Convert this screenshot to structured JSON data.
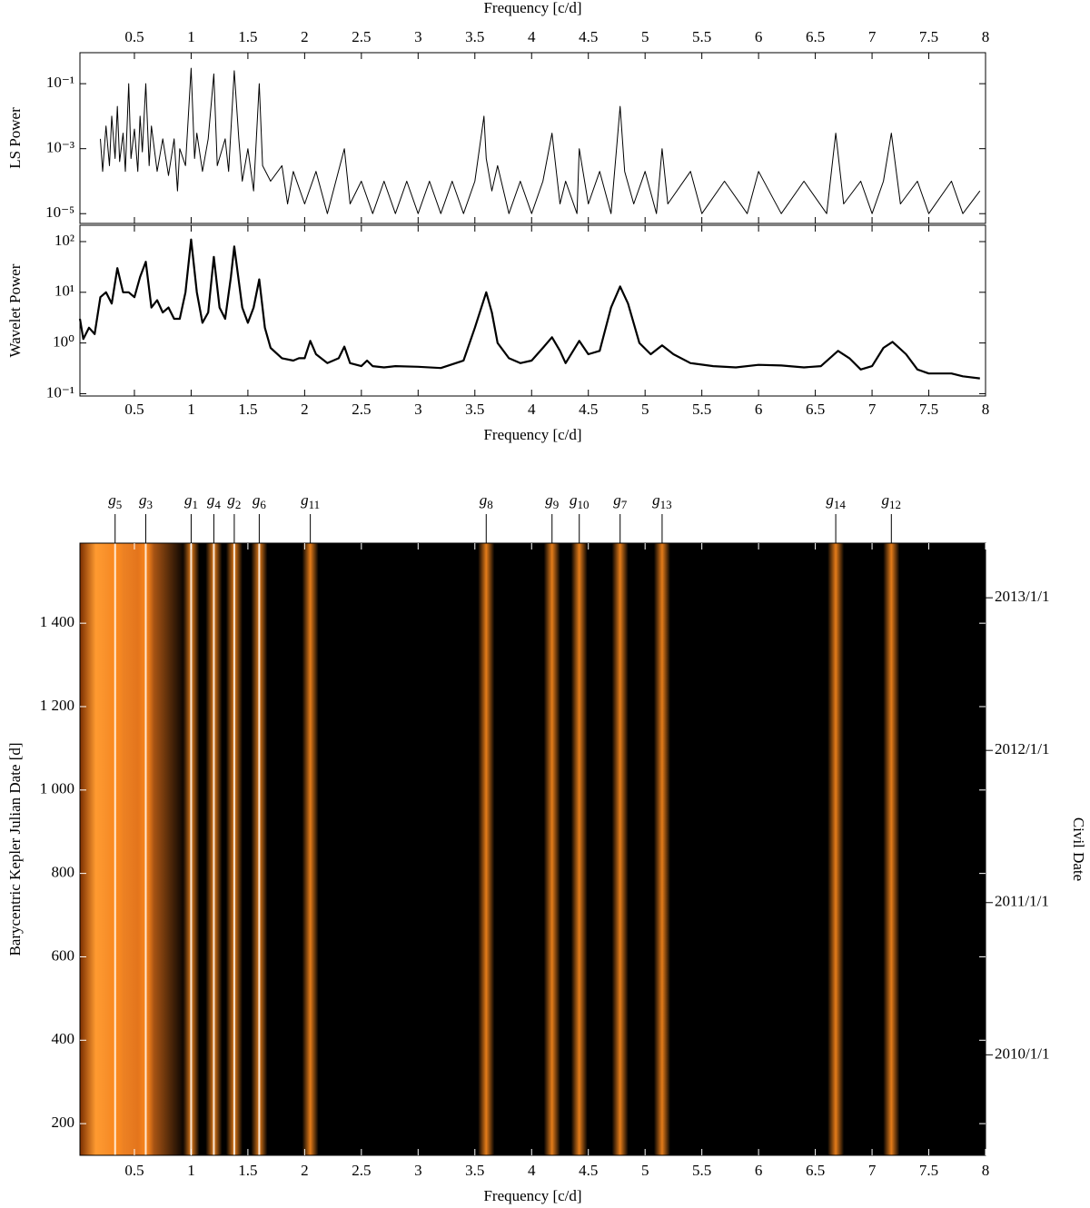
{
  "chart_data": [
    {
      "type": "line",
      "xaxis": "top",
      "log_y": true,
      "xlabel": "Frequency [c/d]",
      "ylabel": "LS Power",
      "xlim": [
        0.02,
        8
      ],
      "ylim": [
        5e-06,
        0.9
      ],
      "xticks": [
        0.5,
        1,
        1.5,
        2,
        2.5,
        3,
        3.5,
        4,
        4.5,
        5,
        5.5,
        6,
        6.5,
        7,
        7.5,
        8
      ],
      "yticks": [
        {
          "value": 0.1,
          "label": "10⁻¹"
        },
        {
          "value": 0.001,
          "label": "10⁻³"
        },
        {
          "value": 1e-05,
          "label": "10⁻⁵"
        }
      ],
      "series": [
        {
          "color": "#000000",
          "x": [
            0.2,
            0.22,
            0.25,
            0.28,
            0.3,
            0.33,
            0.35,
            0.37,
            0.4,
            0.42,
            0.45,
            0.47,
            0.5,
            0.53,
            0.55,
            0.57,
            0.6,
            0.63,
            0.65,
            0.7,
            0.75,
            0.8,
            0.85,
            0.88,
            0.9,
            0.95,
            1.0,
            1.03,
            1.05,
            1.1,
            1.15,
            1.2,
            1.23,
            1.3,
            1.33,
            1.38,
            1.42,
            1.45,
            1.5,
            1.55,
            1.6,
            1.63,
            1.7,
            1.8,
            1.85,
            1.9,
            2.0,
            2.1,
            2.2,
            2.35,
            2.4,
            2.5,
            2.6,
            2.7,
            2.8,
            2.9,
            3.0,
            3.1,
            3.2,
            3.3,
            3.4,
            3.5,
            3.58,
            3.6,
            3.65,
            3.7,
            3.8,
            3.9,
            4.0,
            4.1,
            4.18,
            4.25,
            4.3,
            4.4,
            4.42,
            4.5,
            4.6,
            4.7,
            4.78,
            4.82,
            4.9,
            5.0,
            5.1,
            5.15,
            5.2,
            5.4,
            5.5,
            5.7,
            5.9,
            6.0,
            6.2,
            6.4,
            6.6,
            6.68,
            6.75,
            6.9,
            7.0,
            7.1,
            7.17,
            7.25,
            7.4,
            7.5,
            7.7,
            7.8,
            7.95
          ],
          "values": [
            0.002,
            0.0002,
            0.005,
            0.0003,
            0.01,
            0.0005,
            0.02,
            0.0004,
            0.003,
            0.0002,
            0.1,
            0.0005,
            0.004,
            0.0002,
            0.01,
            0.0008,
            0.1,
            0.0003,
            0.005,
            0.0002,
            0.002,
            0.00015,
            0.002,
            5e-05,
            0.001,
            0.0003,
            0.3,
            0.0005,
            0.003,
            0.0002,
            0.002,
            0.2,
            0.0003,
            0.002,
            0.0002,
            0.25,
            0.002,
            0.0001,
            0.001,
            5e-05,
            0.1,
            0.0003,
            0.0001,
            0.0003,
            2e-05,
            0.0002,
            2e-05,
            0.0002,
            1e-05,
            0.001,
            2e-05,
            0.0001,
            1e-05,
            0.0001,
            1e-05,
            0.0001,
            1e-05,
            0.0001,
            1e-05,
            0.0001,
            1e-05,
            0.0001,
            0.01,
            0.0005,
            5e-05,
            0.0003,
            1e-05,
            0.0001,
            1e-05,
            0.0001,
            0.003,
            2e-05,
            0.0001,
            1e-05,
            0.001,
            2e-05,
            0.0002,
            1e-05,
            0.02,
            0.0002,
            2e-05,
            0.0002,
            1e-05,
            0.001,
            2e-05,
            0.0002,
            1e-05,
            0.0001,
            1e-05,
            0.0002,
            1e-05,
            0.0001,
            1e-05,
            0.003,
            2e-05,
            0.0001,
            1e-05,
            0.0001,
            0.003,
            2e-05,
            0.0001,
            1e-05,
            0.0001,
            1e-05,
            5e-05
          ]
        }
      ]
    },
    {
      "type": "line",
      "xaxis": "bottom",
      "log_y": true,
      "xlabel": "Frequency [c/d]",
      "ylabel": "Wavelet Power",
      "xlim": [
        0.02,
        8
      ],
      "ylim": [
        0.09,
        210
      ],
      "xticks": [
        0.5,
        1,
        1.5,
        2,
        2.5,
        3,
        3.5,
        4,
        4.5,
        5,
        5.5,
        6,
        6.5,
        7,
        7.5,
        8
      ],
      "yticks": [
        {
          "value": 100,
          "label": "10²"
        },
        {
          "value": 10,
          "label": "10¹"
        },
        {
          "value": 1,
          "label": "10⁰"
        },
        {
          "value": 0.1,
          "label": "10⁻¹"
        }
      ],
      "series": [
        {
          "color": "#000000",
          "x": [
            0.02,
            0.05,
            0.1,
            0.15,
            0.2,
            0.25,
            0.3,
            0.35,
            0.4,
            0.45,
            0.5,
            0.55,
            0.6,
            0.65,
            0.7,
            0.75,
            0.8,
            0.85,
            0.9,
            0.95,
            1.0,
            1.05,
            1.1,
            1.15,
            1.2,
            1.25,
            1.3,
            1.35,
            1.38,
            1.45,
            1.5,
            1.55,
            1.6,
            1.65,
            1.7,
            1.8,
            1.9,
            1.95,
            2.0,
            2.05,
            2.1,
            2.2,
            2.3,
            2.35,
            2.4,
            2.5,
            2.55,
            2.6,
            2.7,
            2.8,
            3.0,
            3.2,
            3.4,
            3.5,
            3.6,
            3.65,
            3.7,
            3.8,
            3.9,
            4.0,
            4.1,
            4.18,
            4.25,
            4.3,
            4.42,
            4.5,
            4.6,
            4.7,
            4.78,
            4.85,
            4.95,
            5.05,
            5.15,
            5.25,
            5.4,
            5.6,
            5.8,
            6.0,
            6.2,
            6.4,
            6.55,
            6.7,
            6.8,
            6.9,
            7.0,
            7.1,
            7.18,
            7.3,
            7.4,
            7.5,
            7.7,
            7.8,
            7.95
          ],
          "values": [
            3,
            1.2,
            2,
            1.5,
            8,
            10,
            6,
            30,
            10,
            10,
            8,
            20,
            40,
            5,
            7,
            4,
            5,
            3,
            3,
            10,
            110,
            10,
            2.5,
            4,
            50,
            5,
            3,
            20,
            80,
            5,
            2.5,
            5,
            18,
            2,
            0.8,
            0.5,
            0.45,
            0.5,
            0.5,
            1.1,
            0.6,
            0.4,
            0.5,
            0.85,
            0.4,
            0.35,
            0.45,
            0.35,
            0.33,
            0.35,
            0.34,
            0.32,
            0.45,
            2,
            10,
            4,
            1,
            0.5,
            0.4,
            0.45,
            0.8,
            1.3,
            0.7,
            0.4,
            1.1,
            0.6,
            0.7,
            5,
            13,
            6,
            1,
            0.6,
            0.9,
            0.6,
            0.4,
            0.35,
            0.33,
            0.37,
            0.36,
            0.33,
            0.35,
            0.7,
            0.5,
            0.3,
            0.35,
            0.8,
            1.05,
            0.6,
            0.3,
            0.25,
            0.25,
            0.22,
            0.2
          ]
        }
      ]
    },
    {
      "type": "heatmap",
      "xaxis": "bottom",
      "xlabel": "Frequency [c/d]",
      "ylabel": "Barycentric Kepler Julian Date [d]",
      "y2label": "Civil Date",
      "colors": [
        "#000000",
        "#ff8a1c",
        "#ffffff"
      ],
      "xlim": [
        0.02,
        8
      ],
      "ylim": [
        124,
        1592
      ],
      "xticks": [
        0.5,
        1,
        1.5,
        2,
        2.5,
        3,
        3.5,
        4,
        4.5,
        5,
        5.5,
        6,
        6.5,
        7,
        7.5,
        8
      ],
      "yticks": [
        200,
        400,
        600,
        800,
        {
          "value": 1000,
          "label": "1 000"
        },
        {
          "value": 1200,
          "label": "1 200"
        },
        {
          "value": 1400,
          "label": "1 400"
        }
      ],
      "y2ticks": [
        {
          "value": 365,
          "label": "2010/1/1"
        },
        {
          "value": 730,
          "label": "2011/1/1"
        },
        {
          "value": 1095,
          "label": "2012/1/1"
        },
        {
          "value": 1461,
          "label": "2013/1/1"
        }
      ],
      "annotations": [
        {
          "letter": "g",
          "sub": "5",
          "x": 0.33
        },
        {
          "letter": "g",
          "sub": "3",
          "x": 0.6
        },
        {
          "letter": "g",
          "sub": "1",
          "x": 1.0
        },
        {
          "letter": "g",
          "sub": "4",
          "x": 1.2
        },
        {
          "letter": "g",
          "sub": "2",
          "x": 1.38
        },
        {
          "letter": "g",
          "sub": "6",
          "x": 1.6
        },
        {
          "letter": "g",
          "sub": "11",
          "x": 2.05
        },
        {
          "letter": "g",
          "sub": "8",
          "x": 3.6
        },
        {
          "letter": "g",
          "sub": "9",
          "x": 4.18
        },
        {
          "letter": "g",
          "sub": "10",
          "x": 4.42
        },
        {
          "letter": "g",
          "sub": "7",
          "x": 4.78
        },
        {
          "letter": "g",
          "sub": "13",
          "x": 5.15
        },
        {
          "letter": "g",
          "sub": "14",
          "x": 6.68
        },
        {
          "letter": "g",
          "sub": "12",
          "x": 7.17
        }
      ]
    }
  ]
}
